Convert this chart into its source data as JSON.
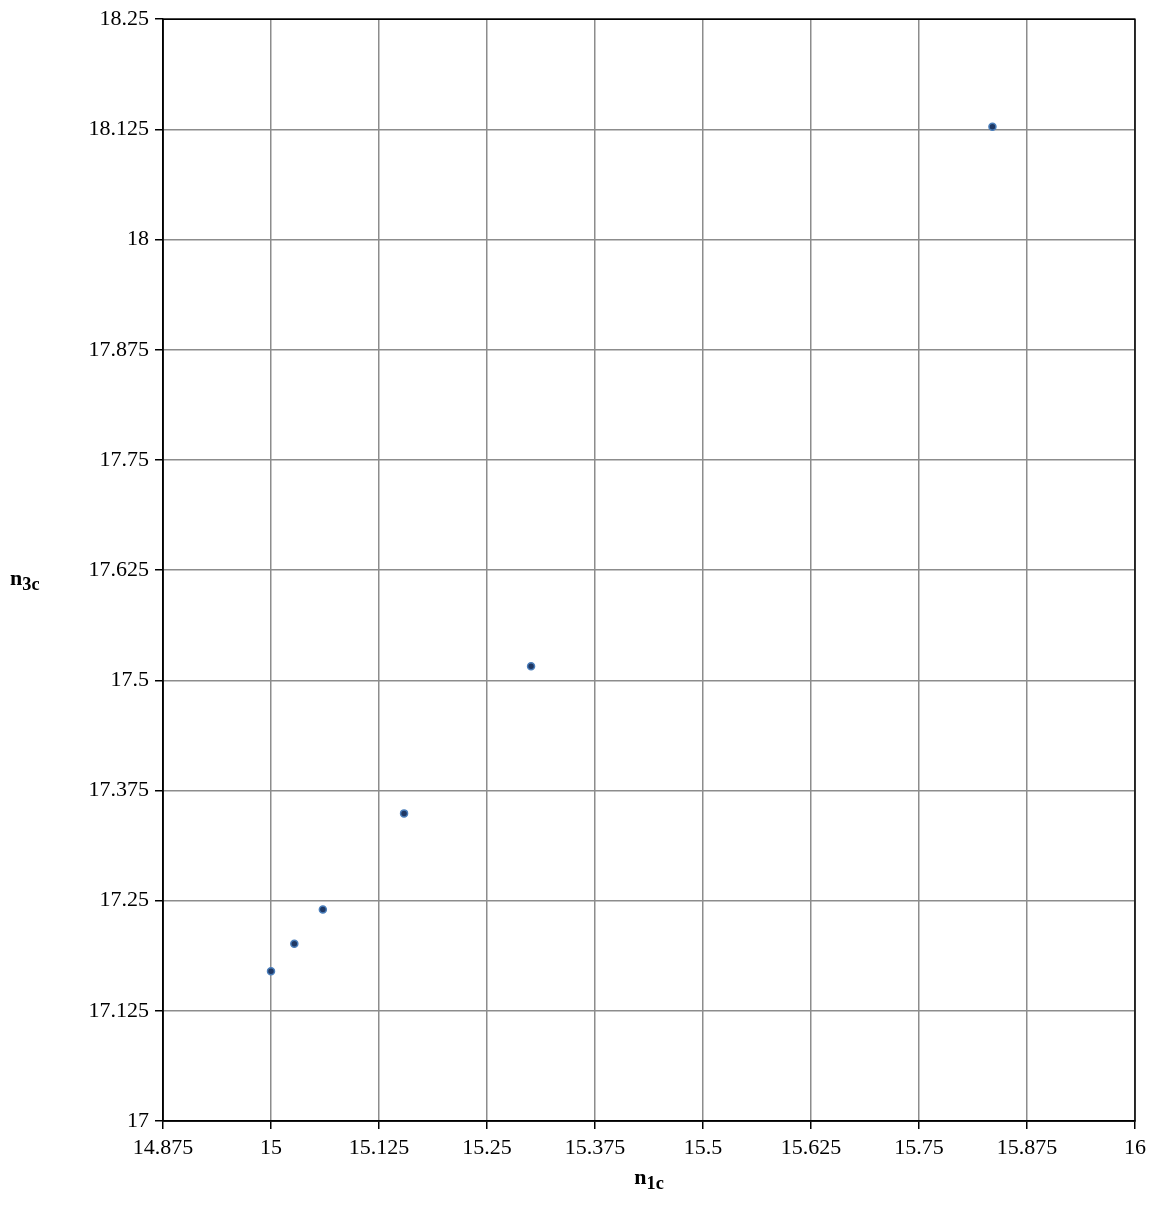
{
  "chart_data": {
    "type": "scatter",
    "xlabel": "n$_{1c}$",
    "ylabel": "n$_{3c}$",
    "x": [
      15.0,
      15.027,
      15.06,
      15.154,
      15.301,
      15.835
    ],
    "series": [
      {
        "color": "#1f3864",
        "values": [
          17.17,
          17.201,
          17.24,
          17.349,
          17.516,
          18.128
        ]
      }
    ],
    "xlim": [
      14.875,
      16
    ],
    "xticks": [
      14.875,
      15,
      15.125,
      15.25,
      15.375,
      15.5,
      15.625,
      15.75,
      15.875,
      16
    ],
    "ylim": [
      17,
      18.25
    ],
    "yticks": [
      17,
      17.125,
      17.25,
      17.375,
      17.5,
      17.625,
      17.75,
      17.875,
      18,
      18.125,
      18.25
    ],
    "grid": true,
    "marker": "circle",
    "legend": false
  }
}
